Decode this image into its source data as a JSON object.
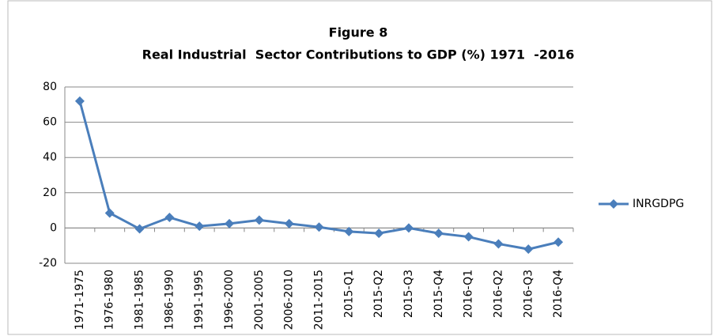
{
  "chart_data": {
    "type": "line",
    "title": "Figure 8",
    "subtitle": "Real Industrial  Sector Contributions to GDP (%) 1971  -2016",
    "categories": [
      "1971-1975",
      "1976-1980",
      "1981-1985",
      "1986-1990",
      "1991-1995",
      "1996-2000",
      "2001-2005",
      "2006-2010",
      "2011-2015",
      "2015-Q1",
      "2015-Q2",
      "2015-Q3",
      "2015-Q4",
      "2016-Q1",
      "2016-Q2",
      "2016-Q3",
      "2016-Q4"
    ],
    "series": [
      {
        "name": "INRGDPG",
        "color": "#4a7ebb",
        "values": [
          72,
          8.5,
          -0.5,
          6,
          1,
          2.5,
          4.5,
          2.5,
          0.5,
          -2,
          -3,
          0,
          -3,
          -5,
          -9,
          -12,
          -8
        ]
      }
    ],
    "ylim": [
      -20,
      80
    ],
    "yticks": [
      -20,
      0,
      20,
      40,
      60,
      80
    ],
    "grid": true,
    "legend": "right"
  }
}
